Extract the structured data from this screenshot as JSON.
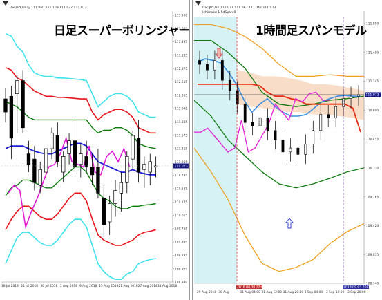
{
  "colors": {
    "background": "#ffffff",
    "candle": "#000000",
    "band_cyan": "#3fe3f0",
    "band_red": "#e8141b",
    "band_green": "#0a7a0a",
    "middle_blue": "#1c1cd8",
    "chikou_magenta": "#e21ad8",
    "kumo_orange": "#f0a020",
    "kumo_fill": "#f7d7c0",
    "span_blue": "#3a8de0",
    "span_red": "#e82b10",
    "current_price_box": "#1a1a8a",
    "right_bg_shaded": "#d6f2f5"
  },
  "left": {
    "collapse_icon": "triangle-down-icon",
    "header": "USDJPY,Daily  111.060 111.109 111.027 111.073",
    "header2": "",
    "title": "日足スーパーボリンジャー",
    "y_ticks": [
      "113.900",
      "113.605",
      "113.395",
      "113.135",
      "112.875",
      "112.615",
      "112.355",
      "112.095",
      "111.835",
      "111.575",
      "111.315",
      "111.055",
      "110.795",
      "110.535",
      "110.275",
      "110.015",
      "109.755",
      "109.495",
      "109.235",
      "108.975",
      "108.940"
    ],
    "current_price": "111.073",
    "x_ticks": [
      "18 Jul 2018",
      "24 Jul 2018",
      "30 Jul 2018",
      "3 Aug 2018",
      "9 Aug 2018",
      "15 Aug 2018",
      "21 Aug 2018",
      "27 Aug 2018",
      "31 Aug 2018"
    ],
    "chart_data": {
      "type": "candlestick",
      "series": [
        {
          "name": "candles",
          "ohlc": [
            [
              112.35,
              112.55,
              111.9,
              112.1
            ],
            [
              112.4,
              112.6,
              111.2,
              111.6
            ],
            [
              112.45,
              112.8,
              111.7,
              112.7
            ],
            [
              112.7,
              112.9,
              111.7,
              111.8
            ],
            [
              111.3,
              111.55,
              110.95,
              111.1
            ],
            [
              111.2,
              111.45,
              110.6,
              110.75
            ],
            [
              110.7,
              111.15,
              110.55,
              111.0
            ],
            [
              110.95,
              111.45,
              110.85,
              111.4
            ],
            [
              111.4,
              111.8,
              111.2,
              111.7
            ],
            [
              111.65,
              111.9,
              111.05,
              111.15
            ],
            [
              110.95,
              111.35,
              110.75,
              111.25
            ],
            [
              111.3,
              111.7,
              111.1,
              111.55
            ],
            [
              111.55,
              111.95,
              110.95,
              111.05
            ],
            [
              111.1,
              111.5,
              110.85,
              111.3
            ],
            [
              111.25,
              111.55,
              110.95,
              111.05
            ],
            [
              111.05,
              111.3,
              110.7,
              110.9
            ],
            [
              111.05,
              111.4,
              110.45,
              110.55
            ],
            [
              110.45,
              110.7,
              109.7,
              109.95
            ],
            [
              110.0,
              110.5,
              109.75,
              110.35
            ],
            [
              110.35,
              110.8,
              110.1,
              110.6
            ],
            [
              110.55,
              110.95,
              110.2,
              110.75
            ],
            [
              110.75,
              111.35,
              110.55,
              111.25
            ],
            [
              111.2,
              111.75,
              111.0,
              111.65
            ],
            [
              111.6,
              111.95,
              110.75,
              110.95
            ],
            [
              111.0,
              111.25,
              110.65,
              111.1
            ],
            [
              110.95,
              111.3,
              110.7,
              111.15
            ],
            [
              111.05,
              111.25,
              110.85,
              111.07
            ]
          ]
        },
        {
          "name": "upper_3sigma",
          "values": [
            113.6,
            113.55,
            113.35,
            113.25,
            113.0,
            112.85,
            112.8,
            112.78,
            112.78,
            112.75,
            112.75,
            112.74,
            112.73,
            112.72,
            112.7,
            112.45,
            112.2,
            112.3,
            112.4,
            112.45,
            112.45,
            112.4,
            112.3,
            112.1,
            112.05,
            112.0,
            112.0
          ]
        },
        {
          "name": "upper_2sigma",
          "values": [
            112.95,
            112.9,
            112.75,
            112.7,
            112.6,
            112.5,
            112.45,
            112.4,
            112.4,
            112.38,
            112.38,
            112.37,
            112.36,
            112.35,
            112.35,
            112.1,
            111.95,
            112.05,
            112.1,
            112.15,
            112.15,
            112.1,
            112.0,
            111.8,
            111.75,
            111.7,
            111.7
          ]
        },
        {
          "name": "upper_1sigma",
          "values": [
            112.3,
            112.25,
            112.2,
            112.1,
            112.0,
            111.95,
            111.95,
            111.95,
            111.95,
            111.95,
            111.95,
            111.95,
            111.95,
            111.95,
            111.95,
            111.8,
            111.7,
            111.75,
            111.75,
            111.8,
            111.8,
            111.75,
            111.65,
            111.5,
            111.45,
            111.42,
            111.4
          ]
        },
        {
          "name": "middle",
          "values": [
            111.4,
            111.45,
            111.45,
            111.45,
            111.4,
            111.35,
            111.32,
            111.3,
            111.3,
            111.35,
            111.4,
            111.45,
            111.5,
            111.5,
            111.45,
            111.3,
            111.15,
            111.1,
            111.05,
            111.0,
            110.95,
            110.95,
            111.0,
            110.95,
            110.92,
            110.9,
            110.9
          ]
        },
        {
          "name": "lower_1sigma",
          "values": [
            110.5,
            110.65,
            110.7,
            110.8,
            110.8,
            110.75,
            110.7,
            110.65,
            110.65,
            110.75,
            110.85,
            110.95,
            111.05,
            111.05,
            110.95,
            110.75,
            110.55,
            110.45,
            110.4,
            110.3,
            110.25,
            110.25,
            110.3,
            110.3,
            110.32,
            110.33,
            110.35
          ]
        },
        {
          "name": "lower_2sigma",
          "values": [
            109.85,
            110.05,
            110.2,
            110.3,
            110.3,
            110.2,
            110.1,
            110.05,
            110.05,
            110.15,
            110.3,
            110.45,
            110.55,
            110.55,
            110.4,
            110.05,
            109.75,
            109.65,
            109.6,
            109.55,
            109.55,
            109.6,
            109.65,
            109.75,
            109.8,
            109.82,
            109.85
          ]
        },
        {
          "name": "lower_3sigma",
          "values": [
            109.2,
            109.45,
            109.7,
            109.8,
            109.8,
            109.7,
            109.6,
            109.55,
            109.55,
            109.65,
            109.8,
            109.95,
            110.05,
            110.05,
            109.9,
            109.55,
            109.2,
            109.05,
            108.95,
            108.9,
            108.9,
            109.0,
            109.05,
            109.2,
            109.25,
            109.28,
            109.3
          ]
        },
        {
          "name": "chikou",
          "values": [
            110.55,
            110.7,
            110.6,
            109.9,
            110.2,
            110.45,
            110.75,
            111.05,
            111.1,
            111.3,
            111.6,
            111.15,
            111.1,
            111.05,
            111.45,
            110.95,
            110.9,
            111.25,
            111.35,
            111.15,
            111.4,
            111.05
          ]
        }
      ]
    }
  },
  "right": {
    "collapse_icon": "triangle-down-icon",
    "header": "USDJPY,H1  111.071 111.087 111.042 111.073",
    "header2": "Ichimoku 1.5dSpan 0",
    "title": "1時間足スパンモデル",
    "current_price": "111.073",
    "y_ticks": [
      "111.950",
      "111.490",
      "111.145",
      "110.800",
      "110.455",
      "110.110",
      "109.765",
      "109.420",
      "109.075",
      "108.740"
    ],
    "x_ticks": [
      "29 Aug 2018",
      "30 Aug",
      "31 Aug 04:00",
      "31 Aug 12:00",
      "31 Aug 20:00",
      "3 Sep 04:00",
      "3 Sep 12:00",
      "3 Sep 20:00"
    ],
    "vline_labels": [
      "2018.08.30 22:00",
      "2018.09.03 20:00"
    ],
    "chart_data": {
      "type": "candlestick",
      "series": [
        {
          "name": "span_blue",
          "values": [
            111.48,
            111.52,
            111.5,
            111.47,
            111.35,
            111.2,
            111.0,
            110.85,
            110.95,
            111.02,
            110.92,
            110.85,
            110.8,
            110.8,
            110.82,
            110.9,
            110.98,
            111.02,
            111.05,
            111.06,
            111.05,
            111.05
          ]
        },
        {
          "name": "span_red",
          "values": [
            111.2,
            111.2,
            111.2,
            111.2,
            111.2,
            111.2,
            111.2,
            111.2,
            111.18,
            111.1,
            111.05,
            111.05,
            111.02,
            111.0,
            110.95,
            110.95,
            110.95,
            110.95,
            110.95,
            110.95,
            110.9,
            110.6
          ]
        },
        {
          "name": "chikou",
          "values": [
            110.6,
            110.6,
            110.65,
            110.55,
            110.45,
            110.35,
            110.4,
            110.75,
            110.35,
            110.4,
            110.55,
            110.7,
            110.95,
            110.85,
            110.75,
            111.02,
            110.98,
            111.08,
            111.1,
            111.0,
            111.0
          ]
        },
        {
          "name": "candles_close",
          "values": [
            111.45,
            111.38,
            111.5,
            111.25,
            111.12,
            110.95,
            110.72,
            110.68,
            110.78,
            110.62,
            110.5,
            110.35,
            110.4,
            110.32,
            110.45,
            110.62,
            110.82,
            110.78,
            110.92,
            111.02,
            111.05,
            111.07
          ]
        }
      ]
    }
  }
}
